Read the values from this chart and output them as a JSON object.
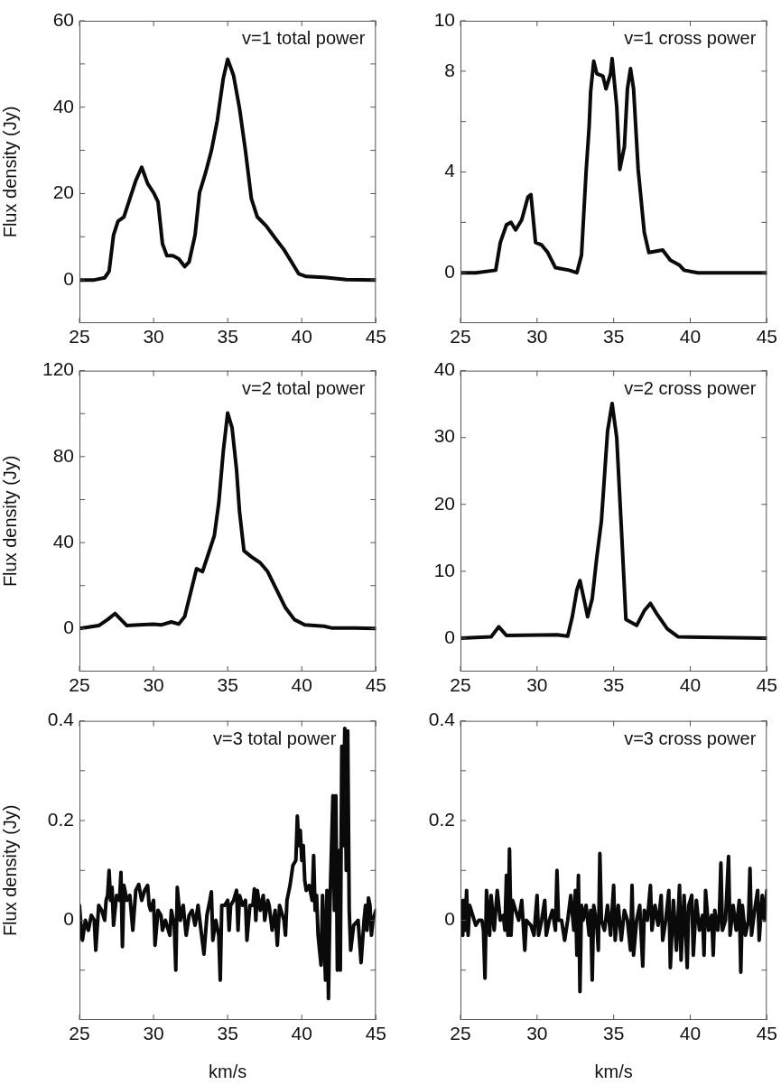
{
  "chart_data": [
    {
      "type": "line",
      "title": "v=1 total power",
      "ylabel": "Flux density (Jy)",
      "color": "#0a0a0a",
      "x": [
        25,
        26,
        26.7,
        27.0,
        27.3,
        27.6,
        28.0,
        28.4,
        28.8,
        29.2,
        29.6,
        30.0,
        30.3,
        30.6,
        30.9,
        31.3,
        31.7,
        32.1,
        32.4,
        32.8,
        33.1,
        33.5,
        33.9,
        34.3,
        34.7,
        35.0,
        35.4,
        35.8,
        36.2,
        36.6,
        37.0,
        37.6,
        38.2,
        38.8,
        39.3,
        39.8,
        40.3,
        41.5,
        43,
        45
      ],
      "values": [
        0,
        0,
        0.5,
        2,
        10.4,
        13.6,
        14.6,
        18.8,
        23,
        26.1,
        22.3,
        20.2,
        18.1,
        8.4,
        5.6,
        5.6,
        4.9,
        3.1,
        4.2,
        10.4,
        20.2,
        24.7,
        29.9,
        36.9,
        46.6,
        51.1,
        47.3,
        39.7,
        29.9,
        18.8,
        14.6,
        12.5,
        9.7,
        7,
        4.2,
        1.4,
        0.8,
        0.6,
        0.1,
        0
      ],
      "xlim": [
        25,
        45
      ],
      "xticks": [
        25,
        30,
        35,
        40,
        45
      ],
      "ylim": [
        -10,
        60
      ],
      "yticks": [
        0,
        {
          "value": 10,
          "label": null
        },
        20,
        {
          "value": 30,
          "label": null
        },
        40,
        {
          "value": 50,
          "label": null
        },
        60
      ]
    },
    {
      "type": "line",
      "title": "v=1 cross power",
      "color": "#0a0a0a",
      "x": [
        25,
        26,
        27.3,
        27.6,
        28.0,
        28.3,
        28.6,
        29.0,
        29.4,
        29.6,
        29.9,
        30.3,
        30.7,
        31.2,
        32.1,
        32.6,
        32.9,
        33.2,
        33.4,
        33.5,
        33.7,
        33.9,
        34.3,
        34.5,
        34.8,
        34.9,
        35.2,
        35.4,
        35.7,
        35.9,
        36.1,
        36.3,
        36.6,
        37.0,
        37.3,
        38.2,
        38.7,
        39.3,
        39.6,
        40.5,
        45
      ],
      "values": [
        0,
        0,
        0.1,
        1.2,
        1.9,
        2.0,
        1.7,
        2.1,
        3.0,
        3.1,
        1.2,
        1.1,
        0.8,
        0.2,
        0.1,
        0,
        0.7,
        4,
        5.8,
        7.2,
        8.4,
        7.9,
        7.8,
        7.3,
        7.9,
        8.5,
        6.6,
        4.1,
        5.0,
        7.3,
        8.1,
        7.3,
        4.1,
        1.6,
        0.8,
        0.9,
        0.5,
        0.3,
        0.1,
        0,
        0
      ],
      "xlim": [
        25,
        45
      ],
      "xticks": [
        25,
        30,
        35,
        40,
        45
      ],
      "ylim": [
        -2,
        10
      ],
      "yticks": [
        0,
        {
          "value": 2,
          "label": null
        },
        4,
        {
          "value": 6,
          "label": null
        },
        8,
        10
      ]
    },
    {
      "type": "line",
      "title": "v=2 total power",
      "ylabel": "Flux density (Jy)",
      "color": "#0a0a0a",
      "x": [
        25,
        26.3,
        26.9,
        27.4,
        27.8,
        28.2,
        29,
        30,
        30.5,
        31.2,
        31.7,
        32.1,
        32.6,
        32.9,
        33.3,
        33.7,
        34.1,
        34.4,
        34.7,
        35.0,
        35.3,
        35.6,
        35.8,
        36.1,
        36.6,
        37.2,
        37.7,
        38.3,
        38.9,
        39.5,
        40.2,
        41.5,
        42,
        43.5,
        45
      ],
      "values": [
        0,
        1.4,
        4.2,
        7,
        4.2,
        1.4,
        1.7,
        2,
        1.7,
        3.1,
        2.1,
        5.6,
        19.5,
        27.9,
        26.5,
        34.8,
        43.2,
        58.5,
        82.2,
        100.3,
        93.3,
        73.8,
        54.3,
        36.2,
        33.4,
        30.6,
        26.5,
        18.1,
        9.7,
        4.2,
        1.7,
        1.1,
        0.3,
        0.3,
        0
      ],
      "xlim": [
        25,
        45
      ],
      "xticks": [
        25,
        30,
        35,
        40,
        45
      ],
      "ylim": [
        -20,
        120
      ],
      "yticks": [
        0,
        {
          "value": 20,
          "label": null
        },
        40,
        {
          "value": 60,
          "label": null
        },
        80,
        {
          "value": 100,
          "label": null
        },
        120
      ]
    },
    {
      "type": "line",
      "title": "v=2 cross power",
      "color": "#0a0a0a",
      "x": [
        25,
        27,
        27.5,
        28,
        31.3,
        32.0,
        32.3,
        32.6,
        32.8,
        33.1,
        33.3,
        33.6,
        33.9,
        34.2,
        34.6,
        34.9,
        35.2,
        35.5,
        35.8,
        36.2,
        36.5,
        37.0,
        37.4,
        37.8,
        38.5,
        39.2,
        45
      ],
      "values": [
        0,
        0.2,
        1.7,
        0.4,
        0.5,
        0.3,
        3.2,
        7.2,
        8.6,
        5.4,
        3.2,
        5.9,
        12.1,
        17.5,
        30.9,
        35.1,
        30,
        16.6,
        2.8,
        2.3,
        1.9,
        4.1,
        5.2,
        3.7,
        1.4,
        0.2,
        0
      ],
      "xlim": [
        25,
        45
      ],
      "xticks": [
        25,
        30,
        35,
        40,
        45
      ],
      "ylim": [
        -5,
        40
      ],
      "yticks": [
        0,
        10,
        20,
        30,
        40
      ]
    },
    {
      "type": "line",
      "title": "v=3 total power",
      "ylabel": "Flux density (Jy)",
      "xlabel": "km/s",
      "color": "#0a0a0a",
      "x": [
        25.0,
        25.1,
        25.2,
        25.4,
        25.6,
        25.8,
        26.0,
        26.1,
        26.3,
        26.5,
        26.7,
        26.8,
        26.9,
        27.0,
        27.1,
        27.2,
        27.3,
        27.5,
        27.7,
        27.8,
        27.9,
        28.0,
        28.2,
        28.4,
        28.6,
        28.8,
        29.0,
        29.2,
        29.4,
        29.6,
        29.7,
        29.8,
        30.0,
        30.1,
        30.3,
        30.5,
        30.6,
        30.8,
        31.0,
        31.1,
        31.2,
        31.4,
        31.5,
        31.6,
        31.8,
        32.0,
        32.2,
        32.4,
        32.6,
        32.8,
        33.0,
        33.2,
        33.4,
        33.6,
        33.8,
        33.9,
        34.0,
        34.2,
        34.4,
        34.5,
        34.6,
        34.8,
        35.0,
        35.1,
        35.2,
        35.4,
        35.6,
        35.7,
        35.8,
        36.0,
        36.2,
        36.3,
        36.5,
        36.7,
        36.8,
        36.9,
        37.0,
        37.2,
        37.4,
        37.5,
        37.7,
        37.8,
        38.0,
        38.2,
        38.35,
        38.5,
        38.8,
        38.9,
        39.0,
        39.2,
        39.4,
        39.6,
        39.7,
        39.8,
        39.9,
        40.0,
        40.1,
        40.2,
        40.3,
        40.5,
        40.7,
        40.8,
        40.9,
        41.0,
        41.1,
        41.3,
        41.4,
        41.6,
        41.7,
        41.8,
        41.9,
        42.1,
        42.2,
        42.3,
        42.4,
        42.5,
        42.6,
        42.7,
        42.8,
        42.9,
        43.0,
        43.1,
        43.2,
        43.3,
        43.5,
        43.8,
        44.0,
        44.2,
        44.3,
        44.4,
        44.5,
        44.6,
        44.7,
        44.8,
        45.0
      ],
      "values": [
        0.03,
        -0.01,
        -0.04,
        0.0,
        -0.02,
        0.01,
        0.0,
        -0.06,
        0.03,
        0.02,
        0.0,
        0.04,
        0.05,
        0.1,
        0.04,
        0.066,
        -0.01,
        0.05,
        0.04,
        0.096,
        -0.053,
        0.07,
        0.04,
        0.05,
        -0.02,
        0.06,
        0.072,
        0.04,
        0.06,
        0.07,
        0.03,
        0.02,
        0.04,
        -0.05,
        0.02,
        0.01,
        -0.02,
        0.0,
        -0.02,
        -0.03,
        0.02,
        -0.01,
        -0.1,
        0.066,
        0.0,
        0.03,
        -0.03,
        0.01,
        0.02,
        -0.01,
        0.03,
        -0.02,
        -0.068,
        0.01,
        0.04,
        0.057,
        -0.04,
        0.0,
        -0.03,
        -0.12,
        0.03,
        0.03,
        0.04,
        -0.02,
        0.03,
        0.04,
        0.06,
        -0.02,
        0.05,
        0.03,
        0.04,
        -0.04,
        0.03,
        0.03,
        0.063,
        0.0,
        0.06,
        0.02,
        0.05,
        0.0,
        0.04,
        0.03,
        -0.02,
        0.02,
        -0.05,
        0.03,
        0.0,
        -0.03,
        0.04,
        0.069,
        0.11,
        0.12,
        0.209,
        0.15,
        0.18,
        0.12,
        0.15,
        0.08,
        0.06,
        0.07,
        0.04,
        0.13,
        0.02,
        0.05,
        -0.03,
        -0.09,
        0.05,
        -0.12,
        0.06,
        -0.157,
        0.03,
        0.25,
        0.02,
        0.25,
        -0.1,
        0.14,
        -0.1,
        0.349,
        0.15,
        0.385,
        0.1,
        0.38,
        0.02,
        -0.06,
        -0.01,
        0.0,
        -0.085,
        0.0,
        0.03,
        -0.02,
        0.045,
        0.03,
        -0.03,
        0.0,
        0.02
      ],
      "xlim": [
        25,
        45
      ],
      "xticks": [
        25,
        30,
        35,
        40,
        45
      ],
      "ylim": [
        -0.2,
        0.4
      ],
      "yticks": [
        {
          "value": -0.1,
          "label": null
        },
        0,
        {
          "value": 0.1,
          "label": null
        },
        0.2,
        {
          "value": 0.3,
          "label": null
        },
        0.4
      ]
    },
    {
      "type": "line",
      "title": "v=3 cross power",
      "xlabel": "km/s",
      "color": "#0a0a0a",
      "x": [
        25.0,
        25.15,
        25.2,
        25.3,
        25.4,
        25.5,
        25.6,
        25.8,
        26.0,
        26.2,
        26.4,
        26.5,
        26.6,
        26.7,
        26.9,
        27.0,
        27.2,
        27.4,
        27.6,
        27.8,
        27.9,
        28.0,
        28.1,
        28.2,
        28.3,
        28.4,
        28.6,
        28.8,
        29.0,
        29.2,
        29.3,
        29.6,
        29.8,
        30.0,
        30.1,
        30.3,
        30.5,
        30.6,
        30.8,
        31.0,
        31.2,
        31.3,
        31.4,
        31.6,
        31.8,
        32.0,
        32.2,
        32.4,
        32.5,
        32.6,
        32.7,
        32.8,
        32.9,
        33.0,
        33.2,
        33.4,
        33.5,
        33.6,
        33.7,
        33.9,
        34.0,
        34.1,
        34.2,
        34.4,
        34.6,
        34.8,
        35.0,
        35.1,
        35.3,
        35.5,
        35.7,
        35.9,
        36.1,
        36.2,
        36.3,
        36.5,
        36.7,
        36.9,
        37.0,
        37.2,
        37.4,
        37.5,
        37.7,
        37.9,
        38.1,
        38.2,
        38.4,
        38.6,
        38.7,
        38.9,
        39.1,
        39.3,
        39.4,
        39.6,
        39.8,
        39.9,
        40.1,
        40.2,
        40.4,
        40.6,
        40.8,
        40.9,
        41.0,
        41.2,
        41.4,
        41.5,
        41.6,
        41.8,
        41.9,
        42.0,
        42.1,
        42.3,
        42.5,
        42.6,
        42.8,
        43.0,
        43.2,
        43.3,
        43.4,
        43.6,
        43.8,
        43.9,
        44.0,
        44.2,
        44.4,
        44.5,
        44.7,
        44.85,
        45.0
      ],
      "values": [
        0.04,
        -0.03,
        0.04,
        -0.02,
        0.06,
        -0.03,
        0.03,
        0.01,
        -0.01,
        0.0,
        0.0,
        -0.02,
        -0.116,
        0.06,
        -0.03,
        0.05,
        -0.02,
        0.06,
        0.0,
        0.01,
        -0.02,
        0.09,
        -0.03,
        0.143,
        -0.03,
        0.04,
        0.02,
        0.0,
        0.04,
        -0.06,
        0.0,
        -0.01,
        -0.03,
        0.05,
        -0.03,
        0.0,
        0.04,
        -0.03,
        0.0,
        0.02,
        -0.02,
        0.1,
        0.0,
        0.0,
        -0.04,
        0.0,
        0.05,
        -0.02,
        0.06,
        -0.07,
        0.09,
        -0.143,
        0.03,
        0.0,
        0.03,
        -0.03,
        0.02,
        -0.12,
        0.03,
        -0.01,
        -0.06,
        0.134,
        0.0,
        -0.02,
        0.03,
        -0.03,
        0.07,
        -0.04,
        0.03,
        -0.04,
        0.02,
        0.0,
        -0.06,
        0.07,
        -0.07,
        0.0,
        0.03,
        -0.092,
        0.02,
        0.0,
        0.07,
        -0.02,
        0.03,
        -0.01,
        0.05,
        -0.04,
        0.0,
        0.06,
        -0.095,
        0.04,
        -0.06,
        0.07,
        -0.08,
        0.05,
        -0.095,
        0.03,
        0.05,
        -0.07,
        0.04,
        -0.02,
        0.01,
        -0.07,
        0.06,
        -0.02,
        0.01,
        -0.07,
        0.02,
        -0.02,
        0.01,
        0.115,
        -0.02,
        0.0,
        0.128,
        -0.03,
        0.03,
        -0.02,
        0.04,
        -0.104,
        0.03,
        -0.03,
        0.0,
        0.104,
        -0.03,
        0.02,
        0.06,
        -0.04,
        0.05,
        0.0,
        0.06
      ],
      "xlim": [
        25,
        45
      ],
      "xticks": [
        25,
        30,
        35,
        40,
        45
      ],
      "ylim": [
        -0.2,
        0.4
      ],
      "yticks": [
        {
          "value": -0.1,
          "label": null
        },
        0,
        {
          "value": 0.1,
          "label": null
        },
        0.2,
        {
          "value": 0.3,
          "label": null
        },
        0.4
      ]
    }
  ]
}
